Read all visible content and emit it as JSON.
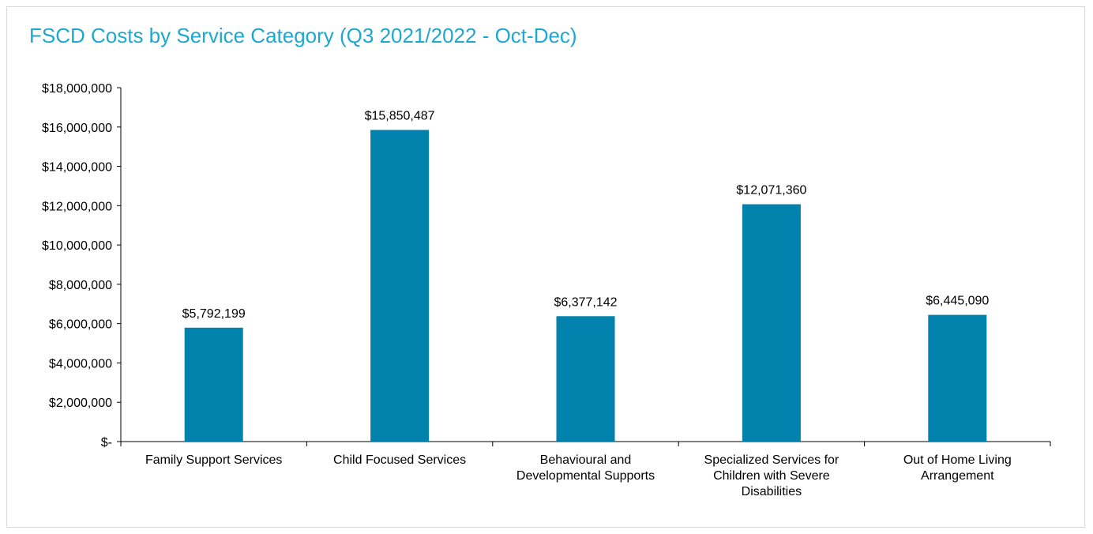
{
  "chart_data": {
    "type": "bar",
    "title": "FSCD Costs by Service Category (Q3 2021/2022 - Oct-Dec)",
    "xlabel": "",
    "ylabel": "",
    "ylim": [
      0,
      18000000
    ],
    "y_ticks": [
      0,
      2000000,
      4000000,
      6000000,
      8000000,
      10000000,
      12000000,
      14000000,
      16000000,
      18000000
    ],
    "y_tick_labels": [
      "$-",
      "$2,000,000",
      "$4,000,000",
      "$6,000,000",
      "$8,000,000",
      "$10,000,000",
      "$12,000,000",
      "$14,000,000",
      "$16,000,000",
      "$18,000,000"
    ],
    "categories": [
      [
        "Family Support Services"
      ],
      [
        "Child Focused Services"
      ],
      [
        "Behavioural and",
        "Developmental Supports"
      ],
      [
        "Specialized Services for",
        "Children with Severe",
        "Disabilities"
      ],
      [
        "Out of Home Living",
        "Arrangement"
      ]
    ],
    "values": [
      5792199,
      15850487,
      6377142,
      12071360,
      6445090
    ],
    "data_labels": [
      "$5,792,199",
      "$15,850,487",
      "$6,377,142",
      "$12,071,360",
      "$6,445,090"
    ],
    "bar_color": "#0082ad",
    "title_color": "#1ea7cf",
    "grid": false,
    "legend": "none"
  }
}
